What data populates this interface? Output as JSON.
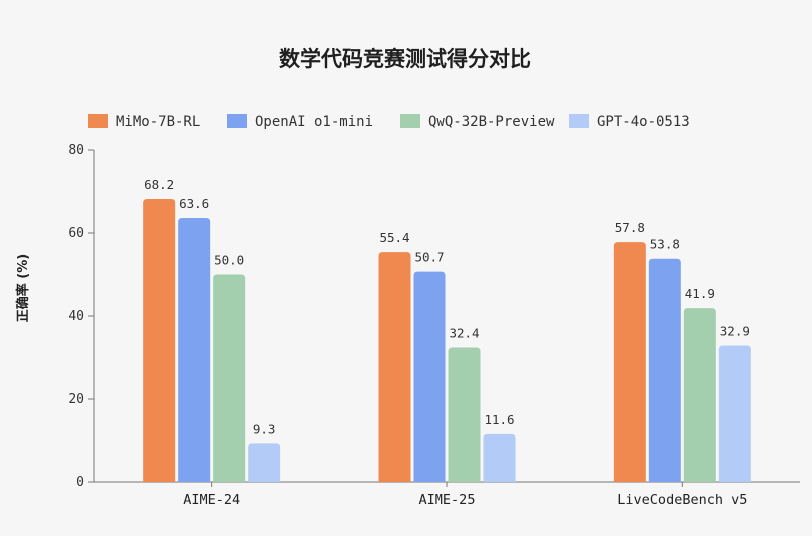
{
  "chart_data": {
    "type": "bar",
    "title": "数学代码竞赛测试得分对比",
    "ylabel": "正确率 (%)",
    "xlabel": "",
    "ylim": [
      0,
      80
    ],
    "yticks": [
      0,
      20,
      40,
      60,
      80
    ],
    "grid": false,
    "legend_position": "top",
    "categories": [
      "AIME-24",
      "AIME-25",
      "LiveCodeBench v5"
    ],
    "series": [
      {
        "name": "MiMo-7B-RL",
        "color": "#f0894f",
        "values": [
          68.2,
          55.4,
          57.8
        ]
      },
      {
        "name": "OpenAI o1-mini",
        "color": "#7da3f0",
        "values": [
          63.6,
          50.7,
          53.8
        ]
      },
      {
        "name": "QwQ-32B-Preview",
        "color": "#a3cfae",
        "values": [
          50.0,
          32.4,
          41.9
        ]
      },
      {
        "name": "GPT-4o-0513",
        "color": "#b3cbf7",
        "values": [
          9.3,
          11.6,
          32.9
        ]
      }
    ]
  }
}
